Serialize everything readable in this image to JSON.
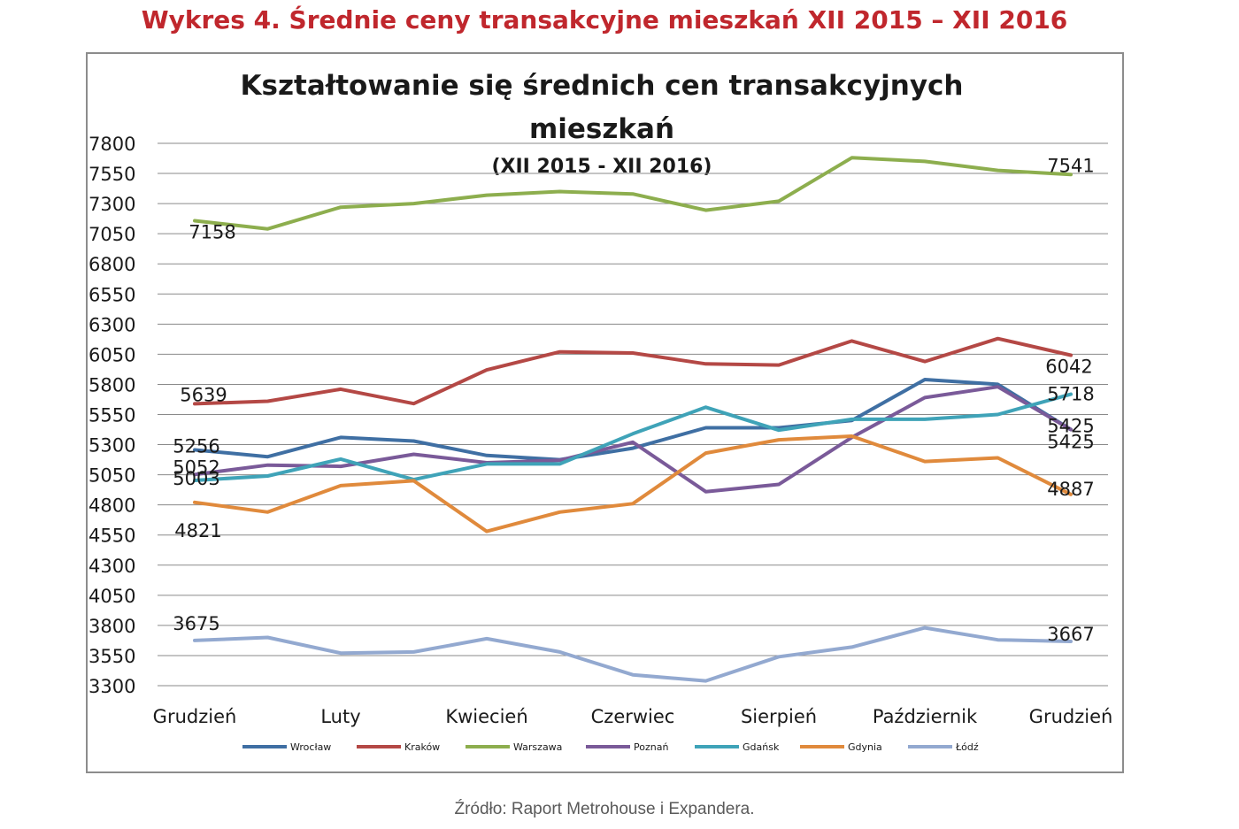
{
  "figure_title": "Wykres 4. Średnie ceny transakcyjne mieszkań XII 2015 – XII 2016",
  "source": "Źródło: Raport Metrohouse i Expandera.",
  "chart_data": {
    "type": "line",
    "title_line1": "Kształtowanie się średnich cen transakcyjnych",
    "title_line2": "mieszkań",
    "subtitle": "(XII 2015 - XII 2016)",
    "xlabel": "",
    "ylabel": "",
    "ylim": [
      3300,
      7800
    ],
    "yticks": [
      3300,
      3550,
      3800,
      4050,
      4300,
      4550,
      4800,
      5050,
      5300,
      5550,
      5800,
      6050,
      6300,
      6550,
      6800,
      7050,
      7300,
      7550,
      7800
    ],
    "grid": true,
    "legend_position": "bottom",
    "x_tick_labels": [
      "Grudzień",
      "Luty",
      "Kwiecień",
      "Czerwiec",
      "Sierpień",
      "Październik",
      "Grudzień"
    ],
    "series": [
      {
        "name": "Wrocław",
        "color": "#3f6fa3",
        "values": [
          5256,
          5200,
          5360,
          5330,
          5210,
          5175,
          5270,
          5440,
          5440,
          5500,
          5840,
          5800,
          5425
        ]
      },
      {
        "name": "Kraków",
        "color": "#b44845",
        "values": [
          5639,
          5660,
          5760,
          5640,
          5920,
          6070,
          6060,
          5970,
          5960,
          6160,
          5990,
          6180,
          6042
        ]
      },
      {
        "name": "Warszawa",
        "color": "#8dae4e",
        "values": [
          7158,
          7090,
          7270,
          7300,
          7370,
          7400,
          7380,
          7245,
          7320,
          7680,
          7650,
          7575,
          7541
        ]
      },
      {
        "name": "Poznań",
        "color": "#7a5a99",
        "values": [
          5052,
          5130,
          5120,
          5220,
          5150,
          5170,
          5320,
          4910,
          4970,
          5360,
          5690,
          5780,
          5425
        ]
      },
      {
        "name": "Gdańsk",
        "color": "#3fa3b8",
        "values": [
          5003,
          5040,
          5180,
          5010,
          5140,
          5140,
          5390,
          5610,
          5420,
          5510,
          5510,
          5550,
          5718
        ]
      },
      {
        "name": "Gdynia",
        "color": "#e08a3c",
        "values": [
          4821,
          4740,
          4960,
          5000,
          4580,
          4740,
          4810,
          5230,
          5340,
          5370,
          5160,
          5190,
          4887
        ]
      },
      {
        "name": "Łódź",
        "color": "#93a9d0",
        "values": [
          3675,
          3700,
          3570,
          3580,
          3690,
          3580,
          3390,
          3340,
          3540,
          3620,
          3780,
          3680,
          3667
        ]
      }
    ],
    "data_labels": [
      {
        "series": "Warszawa",
        "index": 0,
        "text": "7158"
      },
      {
        "series": "Warszawa",
        "index": 12,
        "text": "7541"
      },
      {
        "series": "Kraków",
        "index": 0,
        "text": "5639"
      },
      {
        "series": "Kraków",
        "index": 12,
        "text": "6042"
      },
      {
        "series": "Gdańsk",
        "index": 12,
        "text": "5718"
      },
      {
        "series": "Wrocław",
        "index": 0,
        "text": "5256"
      },
      {
        "series": "Poznań",
        "index": 0,
        "text": "5052"
      },
      {
        "series": "Gdańsk",
        "index": 0,
        "text": "5003"
      },
      {
        "series": "Poznań",
        "index": 12,
        "text": "5425"
      },
      {
        "series": "Wrocław",
        "index": 12,
        "text": "5425"
      },
      {
        "series": "Gdynia",
        "index": 0,
        "text": "4821"
      },
      {
        "series": "Gdynia",
        "index": 12,
        "text": "4887"
      },
      {
        "series": "Łódź",
        "index": 0,
        "text": "3675"
      },
      {
        "series": "Łódź",
        "index": 12,
        "text": "3667"
      }
    ]
  }
}
